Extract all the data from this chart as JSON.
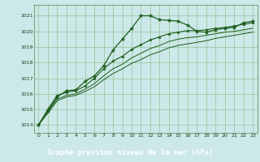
{
  "title": "Graphe pression niveau de la mer (hPa)",
  "bg_color": "#cce8e8",
  "label_bg_color": "#2d6a2d",
  "label_fg_color": "#ffffff",
  "grid_color": "#88bb88",
  "line_color": "#1a5c1a",
  "xlim": [
    -0.5,
    23.5
  ],
  "ylim": [
    1013.5,
    1021.7
  ],
  "yticks": [
    1014,
    1015,
    1016,
    1017,
    1018,
    1019,
    1020,
    1021
  ],
  "xticks": [
    0,
    1,
    2,
    3,
    4,
    5,
    6,
    7,
    8,
    9,
    10,
    11,
    12,
    13,
    14,
    15,
    16,
    17,
    18,
    19,
    20,
    21,
    22,
    23
  ],
  "series1": [
    1014.0,
    1014.9,
    1015.8,
    1016.2,
    1016.25,
    1016.8,
    1017.15,
    1017.8,
    1018.8,
    1019.5,
    1020.2,
    1021.0,
    1021.0,
    1020.75,
    1020.7,
    1020.65,
    1020.4,
    1020.0,
    1019.95,
    1020.1,
    1020.2,
    1020.25,
    1020.55,
    1020.65
  ],
  "series2": [
    1014.0,
    1015.0,
    1015.9,
    1016.1,
    1016.2,
    1016.5,
    1017.0,
    1017.6,
    1018.1,
    1018.4,
    1018.85,
    1019.15,
    1019.45,
    1019.65,
    1019.85,
    1019.95,
    1020.05,
    1020.05,
    1020.1,
    1020.2,
    1020.25,
    1020.35,
    1020.45,
    1020.55
  ],
  "series3": [
    1014.0,
    1014.85,
    1015.65,
    1015.9,
    1016.0,
    1016.3,
    1016.65,
    1017.15,
    1017.6,
    1017.9,
    1018.3,
    1018.6,
    1018.9,
    1019.1,
    1019.35,
    1019.5,
    1019.6,
    1019.65,
    1019.75,
    1019.85,
    1019.95,
    1020.0,
    1020.1,
    1020.2
  ],
  "series4": [
    1014.0,
    1014.75,
    1015.55,
    1015.8,
    1015.9,
    1016.15,
    1016.45,
    1016.9,
    1017.3,
    1017.6,
    1017.95,
    1018.2,
    1018.5,
    1018.7,
    1018.95,
    1019.1,
    1019.2,
    1019.3,
    1019.4,
    1019.55,
    1019.65,
    1019.75,
    1019.85,
    1019.95
  ]
}
